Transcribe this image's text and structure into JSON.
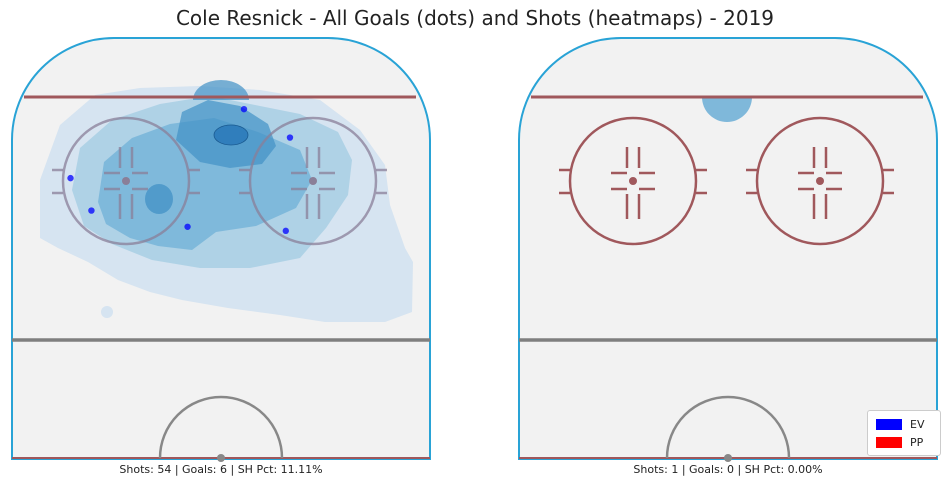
{
  "title": "Cole Resnick - All Goals (dots) and Shots (heatmaps) - 2019",
  "colors": {
    "ice": "#f2f2f2",
    "boards": "#29a3d6",
    "redline": "#a0585c",
    "blueline": "#7f7f7f",
    "heat": [
      "#c6dbef",
      "#9ecae1",
      "#6baed6",
      "#4292c6",
      "#2171b5"
    ],
    "goal_ev": "#0000ff",
    "goal_pp": "#ff0000"
  },
  "chart_data": [
    {
      "type": "scatter",
      "title": "",
      "caption": "Shots: 54 | Goals: 6 | SH Pct: 11.11%",
      "goals": [
        {
          "x": 11,
          "y": 86,
          "strength": "EV"
        },
        {
          "x": 33,
          "y": 79,
          "strength": "EV"
        },
        {
          "x": -72,
          "y": 69,
          "strength": "EV"
        },
        {
          "x": -62,
          "y": 61,
          "strength": "EV"
        },
        {
          "x": -16,
          "y": 57,
          "strength": "EV"
        },
        {
          "x": 31,
          "y": 56,
          "strength": "EV"
        }
      ],
      "heatmap_levels": 5
    },
    {
      "type": "scatter",
      "title": "",
      "caption": "Shots: 1 | Goals: 0 | SH Pct: 0.00%",
      "goals": [],
      "heatmap_levels": 1
    }
  ],
  "legend": [
    {
      "label": "EV",
      "color": "#0000ff"
    },
    {
      "label": "PP",
      "color": "#ff0000"
    }
  ]
}
